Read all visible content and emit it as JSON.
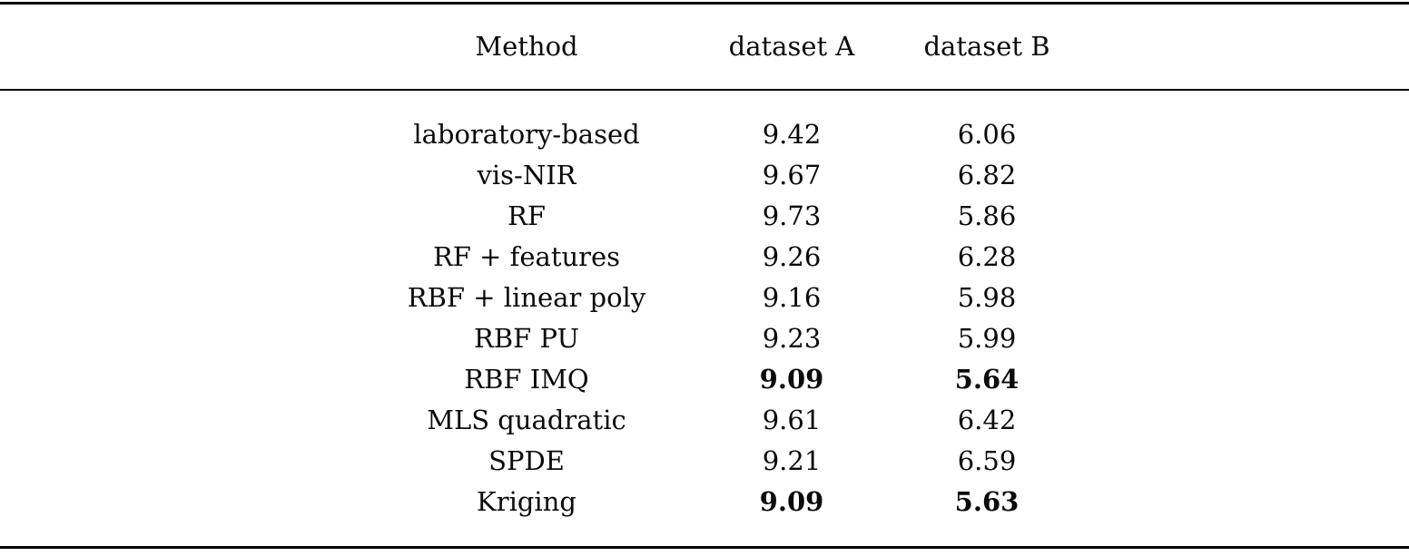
{
  "table": {
    "columns": [
      {
        "key": "method",
        "label": "Method"
      },
      {
        "key": "dataset_a",
        "label": "dataset A"
      },
      {
        "key": "dataset_b",
        "label": "dataset B"
      }
    ],
    "rows": [
      {
        "method": "laboratory-based",
        "dataset_a": "9.42",
        "dataset_b": "6.06",
        "bold": false
      },
      {
        "method": "vis-NIR",
        "dataset_a": "9.67",
        "dataset_b": "6.82",
        "bold": false
      },
      {
        "method": "RF",
        "dataset_a": "9.73",
        "dataset_b": "5.86",
        "bold": false
      },
      {
        "method": "RF + features",
        "dataset_a": "9.26",
        "dataset_b": "6.28",
        "bold": false
      },
      {
        "method": "RBF + linear poly",
        "dataset_a": "9.16",
        "dataset_b": "5.98",
        "bold": false
      },
      {
        "method": "RBF PU",
        "dataset_a": "9.23",
        "dataset_b": "5.99",
        "bold": false
      },
      {
        "method": "RBF IMQ",
        "dataset_a": "9.09",
        "dataset_b": "5.64",
        "bold": true
      },
      {
        "method": "MLS quadratic",
        "dataset_a": "9.61",
        "dataset_b": "6.42",
        "bold": false
      },
      {
        "method": "SPDE",
        "dataset_a": "9.21",
        "dataset_b": "6.59",
        "bold": false
      },
      {
        "method": "Kriging",
        "dataset_a": "9.09",
        "dataset_b": "5.63",
        "bold": true
      }
    ],
    "styles": {
      "text_color": "#0a0a0a",
      "rule_color": "#000000",
      "background": "#ffffff"
    }
  }
}
